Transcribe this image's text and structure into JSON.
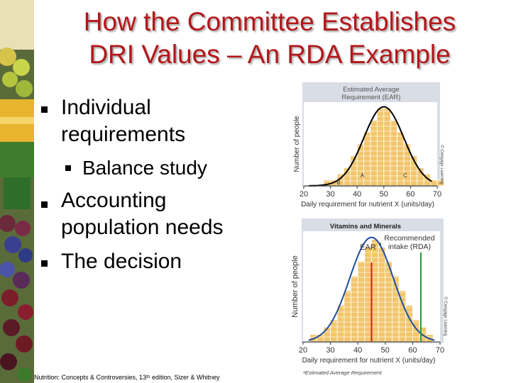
{
  "slide": {
    "title_line1": "How the Committee Establishes",
    "title_line2": "DRI Values – An RDA Example",
    "bullets": [
      {
        "lines": [
          "Individual",
          "requirements"
        ]
      },
      {
        "lines": [
          "Accounting",
          "population needs"
        ]
      },
      {
        "lines": [
          "The decision"
        ]
      }
    ],
    "sub_bullet": "Balance study",
    "footer": "Nutrition: Concepts & Controversies, 13ᵗʰ edition, Sizer & Whitney",
    "accent_color": "#b3171b"
  },
  "chart_data": [
    {
      "type": "bar",
      "title": "Estimated Average Requirement (EAR)",
      "xlabel": "Daily requirement for nutrient X (units/day)",
      "ylabel": "Number of people",
      "x_ticks": [
        "20",
        "30",
        "40",
        "50",
        "60",
        "70"
      ],
      "xlim": [
        20,
        70
      ],
      "bin_width": 2.5,
      "bin_start": 27.5,
      "values": [
        1,
        1,
        2,
        3,
        5,
        7,
        9,
        11,
        13,
        13,
        11,
        9,
        7,
        5,
        3,
        2,
        1,
        1
      ],
      "curve": {
        "mean": 50,
        "sd": 7.5
      },
      "markers": [
        {
          "label": "B",
          "x": 33
        },
        {
          "label": "A",
          "x": 42
        },
        {
          "label": "C",
          "x": 58
        }
      ],
      "credit": "© Cengage Learning",
      "bar_color": "#f2c66d",
      "curve_color": "#000000"
    },
    {
      "type": "bar",
      "header": "Vitamins and Minerals",
      "xlabel": "Daily requirement for nutrient X (units/day)",
      "ylabel": "Number of people",
      "x_ticks": [
        "20",
        "30",
        "40",
        "50",
        "60",
        "70"
      ],
      "xlim": [
        20,
        70
      ],
      "bin_width": 2.5,
      "bin_start": 22.5,
      "values": [
        1,
        1,
        2,
        3,
        5,
        7,
        9,
        11,
        13,
        14,
        13,
        11,
        9,
        7,
        5,
        3,
        2,
        1
      ],
      "curve": {
        "mean": 45,
        "sd": 8
      },
      "ear_label": "EAR",
      "ear_sup": "a",
      "ear_x": 45,
      "rda_label_line1": "Recommended",
      "rda_label_line2": "intake (RDA)",
      "rda_x": 63,
      "footnote": "ᵃEstimated Average Requirement",
      "credit": "© Cengage Learning",
      "bar_color": "#f2c66d",
      "curve_color": "#1f4e9e",
      "ear_color": "#d11f1f",
      "rda_color": "#1f9e3a"
    }
  ]
}
